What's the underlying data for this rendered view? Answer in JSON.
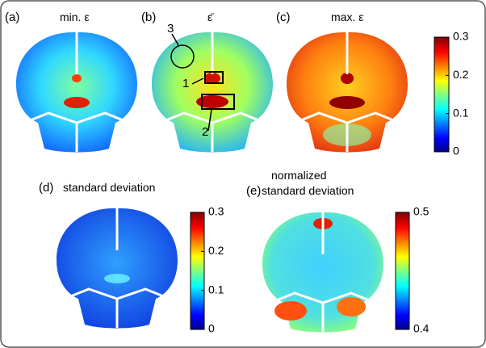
{
  "panels": [
    {
      "label": "(a)",
      "title": "min. ε"
    },
    {
      "label": "(b)",
      "title": "ε̄"
    },
    {
      "label": "(c)",
      "title": "max. ε"
    },
    {
      "label": "(d)",
      "title": "standard deviation"
    },
    {
      "label": "(e)",
      "title_lines": [
        "normalized",
        "standard deviation"
      ]
    }
  ],
  "annotations": [
    "1",
    "2",
    "3"
  ],
  "colorbars": [
    {
      "ticks": [
        "0.3",
        "0.2",
        "0.1",
        "0"
      ]
    },
    {
      "ticks": [
        "0.3",
        "0.2",
        "0.1",
        "0"
      ]
    },
    {
      "ticks": [
        "0.5",
        "0.4"
      ]
    }
  ]
}
